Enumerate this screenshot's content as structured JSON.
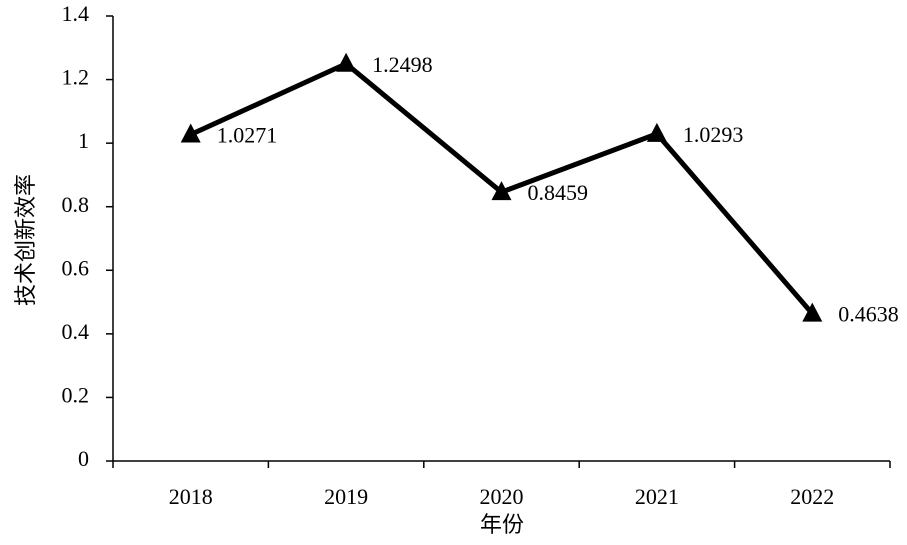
{
  "chart_data": {
    "type": "line",
    "x_label": "年份",
    "y_label": "技术创新效率",
    "categories": [
      "2018",
      "2019",
      "2020",
      "2021",
      "2022"
    ],
    "values": [
      1.0271,
      1.2498,
      0.8459,
      1.0293,
      0.4638
    ],
    "color": "#000000",
    "ylim": [
      0,
      1.4
    ],
    "yticks": [
      0,
      0.2,
      0.4,
      0.6,
      0.8,
      1,
      1.2,
      1.4
    ]
  }
}
